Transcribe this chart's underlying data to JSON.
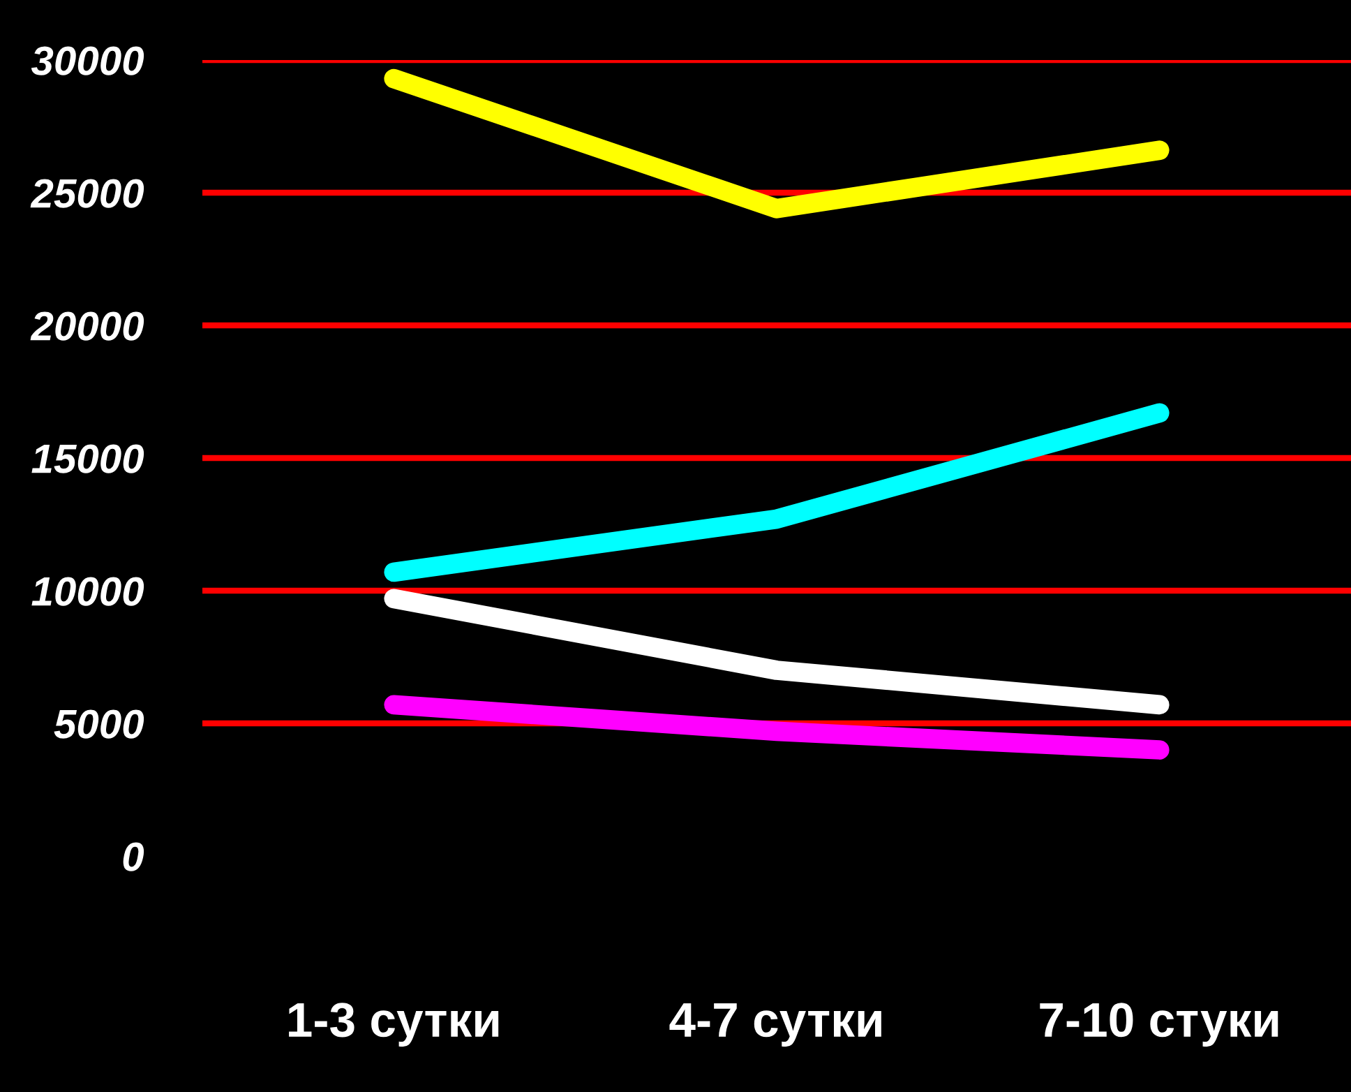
{
  "chart_data": {
    "type": "line",
    "categories": [
      "1-3 сутки",
      "4-7 сутки",
      "7-10 стуки"
    ],
    "series": [
      {
        "color": "#ffff00",
        "values": [
          29300,
          24400,
          26600
        ]
      },
      {
        "color": "#00ffff",
        "values": [
          10700,
          12700,
          16700
        ]
      },
      {
        "color": "#ffffff",
        "values": [
          9700,
          7000,
          5700
        ]
      },
      {
        "color": "#ff00ff",
        "values": [
          5700,
          4700,
          4000
        ]
      }
    ],
    "ylim": [
      0,
      30000
    ],
    "yticks": [
      0,
      5000,
      10000,
      15000,
      20000,
      25000,
      30000
    ],
    "grid": "y",
    "legend": false,
    "line_style": "solid"
  }
}
